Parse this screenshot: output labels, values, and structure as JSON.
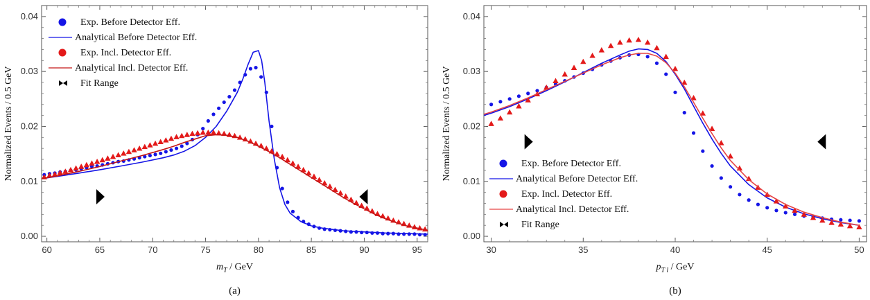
{
  "chart_data": [
    {
      "type": "scatter",
      "panel_label": "(a)",
      "xlabel_main": "m",
      "xlabel_sub": "T",
      "xlabel_unit": " / GeV",
      "ylabel": "Normalized Events / 0.5 GeV",
      "xlim": [
        59.5,
        96
      ],
      "ylim": [
        -0.001,
        0.042
      ],
      "xticks": [
        60,
        65,
        70,
        75,
        80,
        85,
        90,
        95
      ],
      "yticks": [
        0.0,
        0.01,
        0.02,
        0.03,
        0.04
      ],
      "ytick_labels": [
        "0.00",
        "0.01",
        "0.02",
        "0.03",
        "0.04"
      ],
      "legend_position": "top-left",
      "legend": [
        {
          "label": "Exp. Before Detector Eff.",
          "marker": "circle",
          "color": "#1515e6"
        },
        {
          "label": "Analytical Before Detector Eff.",
          "marker": "line",
          "color": "#1515e6"
        },
        {
          "label": "Exp. Incl. Detector Eff.",
          "marker": "circle",
          "color": "#e31a1a"
        },
        {
          "label": "Analytical Incl. Detector Eff.",
          "marker": "line",
          "color": "#c41616"
        },
        {
          "label": "Fit Range",
          "marker": "bowtie",
          "color": "#000000"
        }
      ],
      "fit_range": [
        65,
        90
      ],
      "fit_marker_y": 0.0072,
      "series": [
        {
          "name": "Exp. Before Detector Eff.",
          "kind": "points",
          "marker": "circle",
          "color": "#1515e6",
          "x": [
            59.75,
            60.25,
            60.75,
            61.25,
            61.75,
            62.25,
            62.75,
            63.25,
            63.75,
            64.25,
            64.75,
            65.25,
            65.75,
            66.25,
            66.75,
            67.25,
            67.75,
            68.25,
            68.75,
            69.25,
            69.75,
            70.25,
            70.75,
            71.25,
            71.75,
            72.25,
            72.75,
            73.25,
            73.75,
            74.25,
            74.75,
            75.25,
            75.75,
            76.25,
            76.75,
            77.25,
            77.75,
            78.25,
            78.75,
            79.25,
            79.75,
            80.25,
            80.75,
            81.25,
            81.75,
            82.25,
            82.75,
            83.25,
            83.75,
            84.25,
            84.75,
            85.25,
            85.75,
            86.25,
            86.75,
            87.25,
            87.75,
            88.25,
            88.75,
            89.25,
            89.75,
            90.25,
            90.75,
            91.25,
            91.75,
            92.25,
            92.75,
            93.25,
            93.75,
            94.25,
            94.75,
            95.25,
            95.75
          ],
          "y": [
            0.0112,
            0.0114,
            0.0115,
            0.0117,
            0.0118,
            0.012,
            0.0121,
            0.0123,
            0.0125,
            0.0127,
            0.0128,
            0.013,
            0.0132,
            0.0134,
            0.0136,
            0.0137,
            0.0139,
            0.0141,
            0.0143,
            0.0145,
            0.0147,
            0.0149,
            0.0151,
            0.0154,
            0.0157,
            0.016,
            0.0164,
            0.0169,
            0.0176,
            0.0185,
            0.0196,
            0.021,
            0.0222,
            0.0233,
            0.0244,
            0.0254,
            0.0266,
            0.028,
            0.0294,
            0.0305,
            0.0307,
            0.029,
            0.0262,
            0.02,
            0.0125,
            0.0087,
            0.0062,
            0.0045,
            0.0034,
            0.0027,
            0.0022,
            0.0018,
            0.0015,
            0.0013,
            0.0012,
            0.0011,
            0.001,
            0.0009,
            0.0008,
            0.0008,
            0.0007,
            0.0007,
            0.0006,
            0.0006,
            0.0005,
            0.0005,
            0.0005,
            0.0004,
            0.0004,
            0.0004,
            0.0004,
            0.0003,
            0.0003
          ]
        },
        {
          "name": "Analytical Before Detector Eff.",
          "kind": "line",
          "color": "#1515e6",
          "x": [
            59.5,
            61,
            63,
            65,
            67,
            69,
            71,
            72,
            73,
            74,
            75,
            76,
            77,
            78,
            78.5,
            79,
            79.5,
            80,
            80.3,
            80.6,
            81,
            81.5,
            82,
            82.5,
            83,
            84,
            85,
            86,
            88,
            90,
            92,
            94,
            96
          ],
          "y": [
            0.0105,
            0.0109,
            0.0115,
            0.0121,
            0.0128,
            0.0135,
            0.0143,
            0.0148,
            0.0155,
            0.0165,
            0.018,
            0.02,
            0.0228,
            0.0262,
            0.0285,
            0.0312,
            0.0335,
            0.0338,
            0.032,
            0.028,
            0.021,
            0.014,
            0.0088,
            0.0058,
            0.0042,
            0.0027,
            0.0019,
            0.0015,
            0.001,
            0.0008,
            0.0006,
            0.0005,
            0.0004
          ]
        },
        {
          "name": "Exp. Incl. Detector Eff.",
          "kind": "points",
          "marker": "triangle",
          "color": "#e31a1a",
          "x": [
            59.75,
            60.25,
            60.75,
            61.25,
            61.75,
            62.25,
            62.75,
            63.25,
            63.75,
            64.25,
            64.75,
            65.25,
            65.75,
            66.25,
            66.75,
            67.25,
            67.75,
            68.25,
            68.75,
            69.25,
            69.75,
            70.25,
            70.75,
            71.25,
            71.75,
            72.25,
            72.75,
            73.25,
            73.75,
            74.25,
            74.75,
            75.25,
            75.75,
            76.25,
            76.75,
            77.25,
            77.75,
            78.25,
            78.75,
            79.25,
            79.75,
            80.25,
            80.75,
            81.25,
            81.75,
            82.25,
            82.75,
            83.25,
            83.75,
            84.25,
            84.75,
            85.25,
            85.75,
            86.25,
            86.75,
            87.25,
            87.75,
            88.25,
            88.75,
            89.25,
            89.75,
            90.25,
            90.75,
            91.25,
            91.75,
            92.25,
            92.75,
            93.25,
            93.75,
            94.25,
            94.75,
            95.25,
            95.75
          ],
          "y": [
            0.0108,
            0.0111,
            0.0113,
            0.0116,
            0.0118,
            0.0121,
            0.0124,
            0.0127,
            0.013,
            0.0133,
            0.0136,
            0.0139,
            0.0142,
            0.0145,
            0.0148,
            0.0151,
            0.0154,
            0.0157,
            0.016,
            0.0163,
            0.0166,
            0.0169,
            0.0172,
            0.0175,
            0.0178,
            0.0181,
            0.0183,
            0.0185,
            0.0187,
            0.0188,
            0.0189,
            0.0189,
            0.0189,
            0.0188,
            0.0187,
            0.0185,
            0.0183,
            0.018,
            0.0177,
            0.0173,
            0.0169,
            0.0165,
            0.016,
            0.0155,
            0.015,
            0.0145,
            0.0139,
            0.0133,
            0.0127,
            0.0121,
            0.0115,
            0.0109,
            0.0103,
            0.0097,
            0.0091,
            0.0085,
            0.0079,
            0.0073,
            0.0067,
            0.0061,
            0.0056,
            0.0051,
            0.0046,
            0.0041,
            0.0037,
            0.0033,
            0.0029,
            0.0026,
            0.0023,
            0.002,
            0.0017,
            0.0015,
            0.0013
          ]
        },
        {
          "name": "Analytical Incl. Detector Eff.",
          "kind": "line",
          "color": "#c41616",
          "x": [
            59.5,
            61,
            63,
            65,
            67,
            69,
            71,
            72,
            73,
            74,
            75,
            76,
            77,
            78,
            79,
            80,
            81,
            82,
            83,
            84,
            85,
            86,
            87,
            88,
            89,
            90,
            91,
            92,
            93,
            94,
            95,
            96
          ],
          "y": [
            0.0105,
            0.011,
            0.0118,
            0.0127,
            0.0137,
            0.0147,
            0.0158,
            0.0164,
            0.0171,
            0.0177,
            0.0183,
            0.0185,
            0.0184,
            0.018,
            0.0173,
            0.0164,
            0.0154,
            0.0143,
            0.0131,
            0.0119,
            0.0107,
            0.0095,
            0.0083,
            0.0071,
            0.006,
            0.005,
            0.004,
            0.0032,
            0.0025,
            0.0019,
            0.0015,
            0.0011
          ]
        }
      ]
    },
    {
      "type": "scatter",
      "panel_label": "(b)",
      "xlabel_main": "p",
      "xlabel_sub": "T l",
      "xlabel_unit": " / GeV",
      "ylabel": "Normalized Events / 0.5 GeV",
      "xlim": [
        29.6,
        50.4
      ],
      "ylim": [
        -0.001,
        0.042
      ],
      "xticks": [
        30,
        35,
        40,
        45,
        50
      ],
      "yticks": [
        0.0,
        0.01,
        0.02,
        0.03,
        0.04
      ],
      "ytick_labels": [
        "0.00",
        "0.01",
        "0.02",
        "0.03",
        "0.04"
      ],
      "legend_position": "bottom-left",
      "legend": [
        {
          "label": "Exp. Before Detector Eff.",
          "marker": "circle",
          "color": "#1515e6"
        },
        {
          "label": "Analytical Before Detector Eff.",
          "marker": "line",
          "color": "#1515e6"
        },
        {
          "label": "Exp. Incl. Detector Eff.",
          "marker": "circle",
          "color": "#e31a1a"
        },
        {
          "label": "Analytical Incl. Detector Eff.",
          "marker": "line",
          "color": "#e64545"
        },
        {
          "label": "Fit Range",
          "marker": "bowtie",
          "color": "#000000"
        }
      ],
      "fit_range": [
        32,
        48
      ],
      "fit_marker_y": 0.0172,
      "series": [
        {
          "name": "Exp. Before Detector Eff.",
          "kind": "points",
          "marker": "circle",
          "color": "#1515e6",
          "x": [
            30.0,
            30.5,
            31.0,
            31.5,
            32.0,
            32.5,
            33.0,
            33.5,
            34.0,
            34.5,
            35.0,
            35.5,
            36.0,
            36.5,
            37.0,
            37.5,
            38.0,
            38.5,
            39.0,
            39.5,
            40.0,
            40.5,
            41.0,
            41.5,
            42.0,
            42.5,
            43.0,
            43.5,
            44.0,
            44.5,
            45.0,
            45.5,
            46.0,
            46.5,
            47.0,
            47.5,
            48.0,
            48.5,
            49.0,
            49.5,
            50.0
          ],
          "y": [
            0.024,
            0.0245,
            0.025,
            0.0255,
            0.026,
            0.0265,
            0.0271,
            0.0277,
            0.0283,
            0.029,
            0.0297,
            0.0304,
            0.0312,
            0.0319,
            0.0325,
            0.033,
            0.0331,
            0.0327,
            0.0315,
            0.0295,
            0.0262,
            0.0225,
            0.0188,
            0.0155,
            0.0128,
            0.0106,
            0.009,
            0.0076,
            0.0066,
            0.0058,
            0.0052,
            0.0047,
            0.0043,
            0.004,
            0.0037,
            0.0035,
            0.0033,
            0.0031,
            0.003,
            0.0029,
            0.0028
          ]
        },
        {
          "name": "Analytical Before Detector Eff.",
          "kind": "line",
          "color": "#1515e6",
          "x": [
            29.6,
            30,
            31,
            32,
            33,
            34,
            35,
            36,
            37,
            37.5,
            38,
            38.5,
            39,
            39.5,
            40,
            40.5,
            41,
            41.5,
            42,
            42.5,
            43,
            44,
            45,
            46,
            47,
            48,
            49,
            50
          ],
          "y": [
            0.022,
            0.0224,
            0.0236,
            0.025,
            0.0265,
            0.0281,
            0.0298,
            0.0315,
            0.033,
            0.0337,
            0.0341,
            0.034,
            0.0333,
            0.0318,
            0.0295,
            0.0268,
            0.0237,
            0.0206,
            0.0177,
            0.0151,
            0.0128,
            0.0094,
            0.007,
            0.0053,
            0.0041,
            0.0032,
            0.0025,
            0.002
          ]
        },
        {
          "name": "Exp. Incl. Detector Eff.",
          "kind": "points",
          "marker": "triangle",
          "color": "#e31a1a",
          "x": [
            30.0,
            30.5,
            31.0,
            31.5,
            32.0,
            32.5,
            33.0,
            33.5,
            34.0,
            34.5,
            35.0,
            35.5,
            36.0,
            36.5,
            37.0,
            37.5,
            38.0,
            38.5,
            39.0,
            39.5,
            40.0,
            40.5,
            41.0,
            41.5,
            42.0,
            42.5,
            43.0,
            43.5,
            44.0,
            44.5,
            45.0,
            45.5,
            46.0,
            46.5,
            47.0,
            47.5,
            48.0,
            48.5,
            49.0,
            49.5,
            50.0
          ],
          "y": [
            0.0205,
            0.0215,
            0.0226,
            0.0237,
            0.0248,
            0.0259,
            0.0271,
            0.0283,
            0.0295,
            0.0307,
            0.0318,
            0.0329,
            0.0339,
            0.0347,
            0.0353,
            0.0357,
            0.0358,
            0.0353,
            0.0343,
            0.0327,
            0.0305,
            0.028,
            0.0252,
            0.0224,
            0.0196,
            0.017,
            0.0146,
            0.0124,
            0.0105,
            0.0089,
            0.0076,
            0.0064,
            0.0055,
            0.0047,
            0.004,
            0.0034,
            0.0029,
            0.0025,
            0.0022,
            0.0019,
            0.0017
          ]
        },
        {
          "name": "Analytical Incl. Detector Eff.",
          "kind": "line",
          "color": "#e64545",
          "x": [
            29.6,
            30,
            31,
            32,
            33,
            34,
            35,
            36,
            37,
            37.5,
            38,
            38.5,
            39,
            39.5,
            40,
            40.5,
            41,
            41.5,
            42,
            42.5,
            43,
            44,
            45,
            46,
            47,
            48,
            49,
            50
          ],
          "y": [
            0.0222,
            0.0226,
            0.0238,
            0.0252,
            0.0267,
            0.0282,
            0.0297,
            0.0312,
            0.0325,
            0.033,
            0.0333,
            0.0333,
            0.0328,
            0.0316,
            0.0297,
            0.0272,
            0.0244,
            0.0215,
            0.0187,
            0.0161,
            0.0138,
            0.0103,
            0.0077,
            0.0058,
            0.0044,
            0.0034,
            0.0026,
            0.002
          ]
        }
      ]
    }
  ]
}
